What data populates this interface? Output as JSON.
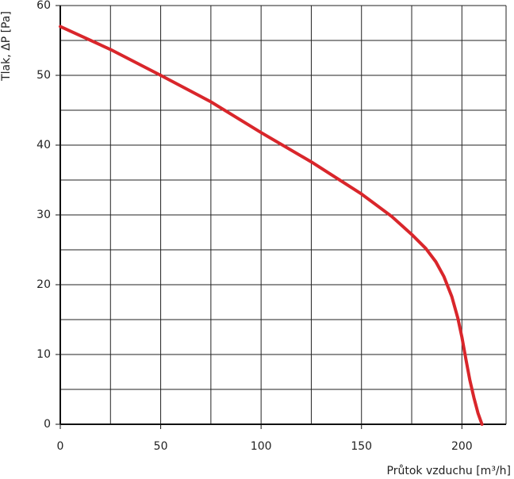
{
  "chart_data": {
    "type": "line",
    "xlabel": "Průtok vzduchu [m³/h]",
    "ylabel": "Tlak, ΔP [Pa]",
    "x": [
      0,
      25,
      50,
      75,
      100,
      125,
      150,
      165,
      175,
      182,
      187,
      191,
      195,
      198,
      200,
      202,
      204,
      206,
      208,
      210
    ],
    "series": [
      {
        "color": "#d9262b",
        "values": [
          57,
          53.7,
          50,
          46.2,
          41.8,
          37.6,
          33,
          29.8,
          27.2,
          25.2,
          23.3,
          21.2,
          18.3,
          15.2,
          12.5,
          9.3,
          6.3,
          3.8,
          1.6,
          0
        ]
      }
    ],
    "xlim": [
      0,
      222
    ],
    "ylim": [
      0,
      60
    ],
    "xticks": [
      0,
      50,
      100,
      150,
      200
    ],
    "yticks": [
      0,
      10,
      20,
      30,
      40,
      50,
      60
    ],
    "xgrid": [
      25,
      50,
      75,
      100,
      125,
      150,
      175,
      200,
      222
    ],
    "ygrid": [
      5,
      10,
      15,
      20,
      25,
      30,
      35,
      40,
      45,
      50,
      55,
      60
    ],
    "grid": true
  }
}
